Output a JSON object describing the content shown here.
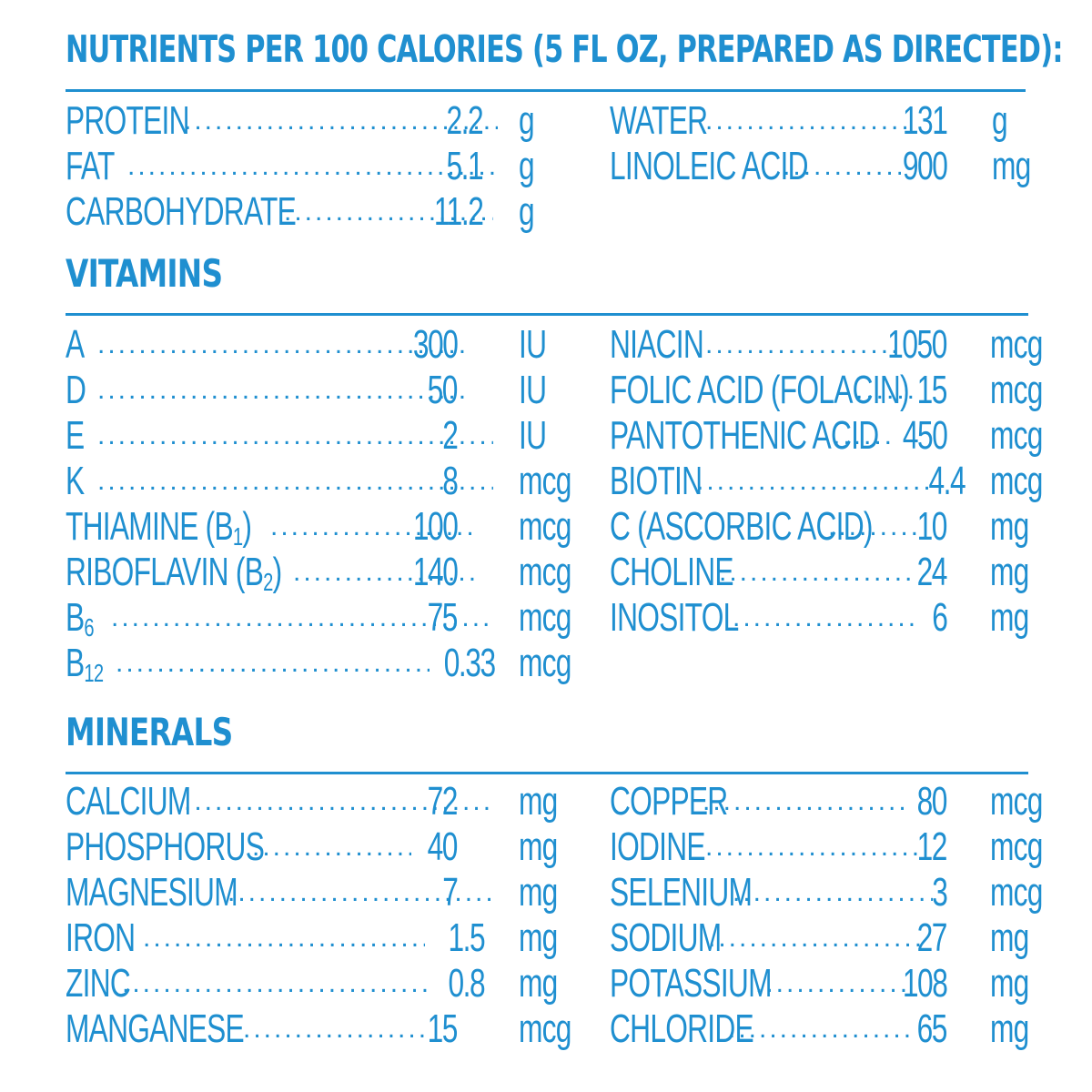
{
  "title": "NUTRIENTS PER 100 CALORIES (5 FL OZ, PREPARED AS DIRECTED):",
  "general": [
    {
      "label": "PROTEIN",
      "value": "2.2",
      "unit": "g"
    },
    {
      "label": "FAT",
      "value": "5.1",
      "unit": "g"
    },
    {
      "label": "CARBOHYDRATE",
      "value": "11.2",
      "unit": "g"
    },
    {
      "label": "WATER",
      "value": "131",
      "unit": "g"
    },
    {
      "label": "LINOLEIC ACID",
      "value": "900",
      "unit": "mg"
    }
  ],
  "vitamins": {
    "title": "VITAMINS",
    "items": [
      {
        "label": "A",
        "sub": "",
        "value": "300",
        "unit": "IU"
      },
      {
        "label": "D",
        "sub": "",
        "value": "50",
        "unit": "IU"
      },
      {
        "label": "E",
        "sub": "",
        "value": "2",
        "unit": "IU"
      },
      {
        "label": "K",
        "sub": "",
        "value": "8",
        "unit": "mcg"
      },
      {
        "label": "THIAMINE (B",
        "sub": "1",
        "tail": ")",
        "value": "100",
        "unit": "mcg"
      },
      {
        "label": "RIBOFLAVIN (B",
        "sub": "2",
        "tail": ")",
        "value": "140",
        "unit": "mcg"
      },
      {
        "label": "B",
        "sub": "6",
        "value": "75",
        "unit": "mcg"
      },
      {
        "label": "B",
        "sub": "12",
        "value": "0.33",
        "unit": "mcg"
      },
      {
        "label": "NIACIN",
        "sub": "",
        "value": "1050",
        "unit": "mcg"
      },
      {
        "label": "FOLIC ACID (FOLACIN)",
        "sub": "",
        "value": "15",
        "unit": "mcg"
      },
      {
        "label": "PANTOTHENIC ACID",
        "sub": "",
        "value": "450",
        "unit": "mcg"
      },
      {
        "label": "BIOTIN",
        "sub": "",
        "value": "4.4",
        "unit": "mcg"
      },
      {
        "label": "C (ASCORBIC ACID)",
        "sub": "",
        "value": "10",
        "unit": "mg"
      },
      {
        "label": "CHOLINE",
        "sub": "",
        "value": "24",
        "unit": "mg"
      },
      {
        "label": "INOSITOL",
        "sub": "",
        "value": "6",
        "unit": "mg"
      }
    ]
  },
  "minerals": {
    "title": "MINERALS",
    "items": [
      {
        "label": "CALCIUM",
        "value": "72",
        "unit": "mg"
      },
      {
        "label": "PHOSPHORUS",
        "value": "40",
        "unit": "mg"
      },
      {
        "label": "MAGNESIUM",
        "value": "7",
        "unit": "mg"
      },
      {
        "label": "IRON",
        "value": "1.5",
        "unit": "mg"
      },
      {
        "label": "ZINC",
        "value": "0.8",
        "unit": "mg"
      },
      {
        "label": "MANGANESE",
        "value": "15",
        "unit": "mcg"
      },
      {
        "label": "COPPER",
        "value": "80",
        "unit": "mcg"
      },
      {
        "label": "IODINE",
        "value": "12",
        "unit": "mcg"
      },
      {
        "label": "SELENIUM",
        "value": "3",
        "unit": "mcg"
      },
      {
        "label": "SODIUM",
        "value": "27",
        "unit": "mg"
      },
      {
        "label": "POTASSIUM",
        "value": "108",
        "unit": "mg"
      },
      {
        "label": "CHLORIDE",
        "value": "65",
        "unit": "mg"
      }
    ]
  }
}
